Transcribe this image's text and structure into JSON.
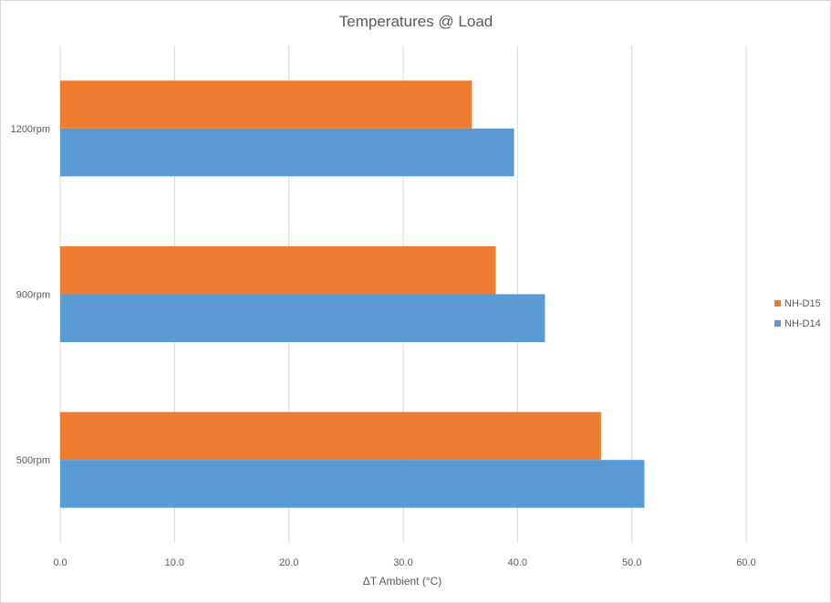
{
  "chart_data": {
    "type": "bar",
    "orientation": "horizontal",
    "title": "Temperatures @ Load",
    "xlabel": "ΔT Ambient (°C)",
    "ylabel": "",
    "categories": [
      "500rpm",
      "900rpm",
      "1200rpm"
    ],
    "series": [
      {
        "name": "NH-D14",
        "color": "#5b9bd5",
        "values": [
          51.1,
          42.4,
          39.7
        ]
      },
      {
        "name": "NH-D15",
        "color": "#ed7d31",
        "values": [
          47.3,
          38.1,
          36.0
        ]
      }
    ],
    "xlim": [
      0,
      60
    ],
    "x_ticks": [
      "0.0",
      "10.0",
      "20.0",
      "30.0",
      "40.0",
      "50.0",
      "60.0"
    ],
    "grid": true,
    "legend_position": "right"
  }
}
